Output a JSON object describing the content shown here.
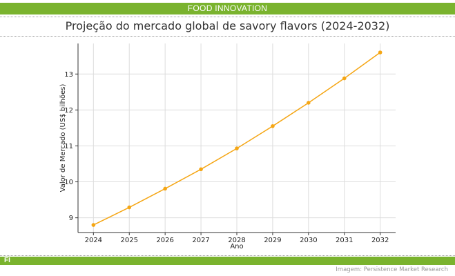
{
  "header": {
    "banner_label": "FOOD INNOVATION"
  },
  "footer": {
    "brand_label": "FI",
    "source_credit": "Imagem: Persistence Market Research"
  },
  "colors": {
    "accent_green": "#7ab32e",
    "line_orange": "#f5a614"
  },
  "chart_data": {
    "type": "line",
    "title": "Projeção do mercado global de savory flavors (2024-2032)",
    "xlabel": "Ano",
    "ylabel": "Valor de Mercado (US$ bilhões)",
    "x": [
      2024,
      2025,
      2026,
      2027,
      2028,
      2029,
      2030,
      2031,
      2032
    ],
    "series": [
      {
        "values": [
          8.8,
          9.29,
          9.81,
          10.35,
          10.93,
          11.55,
          12.2,
          12.88,
          13.6
        ]
      }
    ],
    "xticks": [
      "2024",
      "2025",
      "2026",
      "2027",
      "2028",
      "2029",
      "2030",
      "2031",
      "2032"
    ],
    "yticks": [
      "9",
      "10",
      "11",
      "12",
      "13"
    ],
    "xlim": [
      2023.57,
      2032.43
    ],
    "ylim": [
      8.59,
      13.85
    ],
    "grid": true,
    "legend": "none"
  }
}
